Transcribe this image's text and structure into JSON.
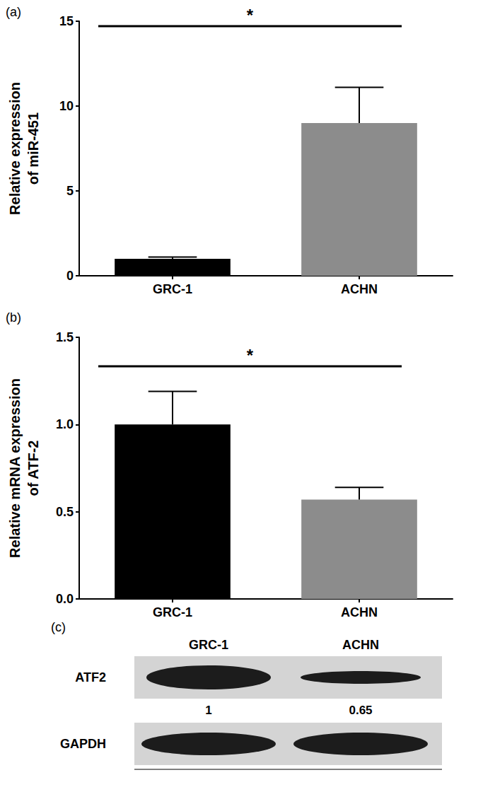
{
  "chart_data": [
    {
      "type": "bar",
      "panel_label": "(a)",
      "y_label": "Relative expression\nof miR-451",
      "categories": [
        "GRC-1",
        "ACHN"
      ],
      "values": [
        1.0,
        9.0
      ],
      "errors": [
        0.1,
        2.1
      ],
      "colors": [
        "#000000",
        "#8c8c8c"
      ],
      "ylim": [
        0,
        15
      ],
      "yticks": [
        0,
        5,
        10,
        15
      ],
      "grid": false,
      "annotation": "*"
    },
    {
      "type": "bar",
      "panel_label": "(b)",
      "y_label": "Relative mRNA expression\nof ATF-2",
      "categories": [
        "GRC-1",
        "ACHN"
      ],
      "values": [
        1.0,
        0.57
      ],
      "errors": [
        0.19,
        0.07
      ],
      "colors": [
        "#000000",
        "#8c8c8c"
      ],
      "ylim": [
        0,
        1.5
      ],
      "yticks": [
        {
          "value": 0,
          "label": "0.0"
        },
        {
          "value": 0.5,
          "label": "0.5"
        },
        {
          "value": 1,
          "label": "1.0"
        },
        {
          "value": 1.5,
          "label": "1.5"
        }
      ],
      "grid": false,
      "annotation": "*"
    }
  ],
  "blot": {
    "panel_label": "(c)",
    "lanes": [
      "GRC-1",
      "ACHN"
    ],
    "rows": [
      {
        "name": "ATF2",
        "quantification": [
          1,
          0.65
        ]
      },
      {
        "name": "GAPDH"
      }
    ]
  }
}
